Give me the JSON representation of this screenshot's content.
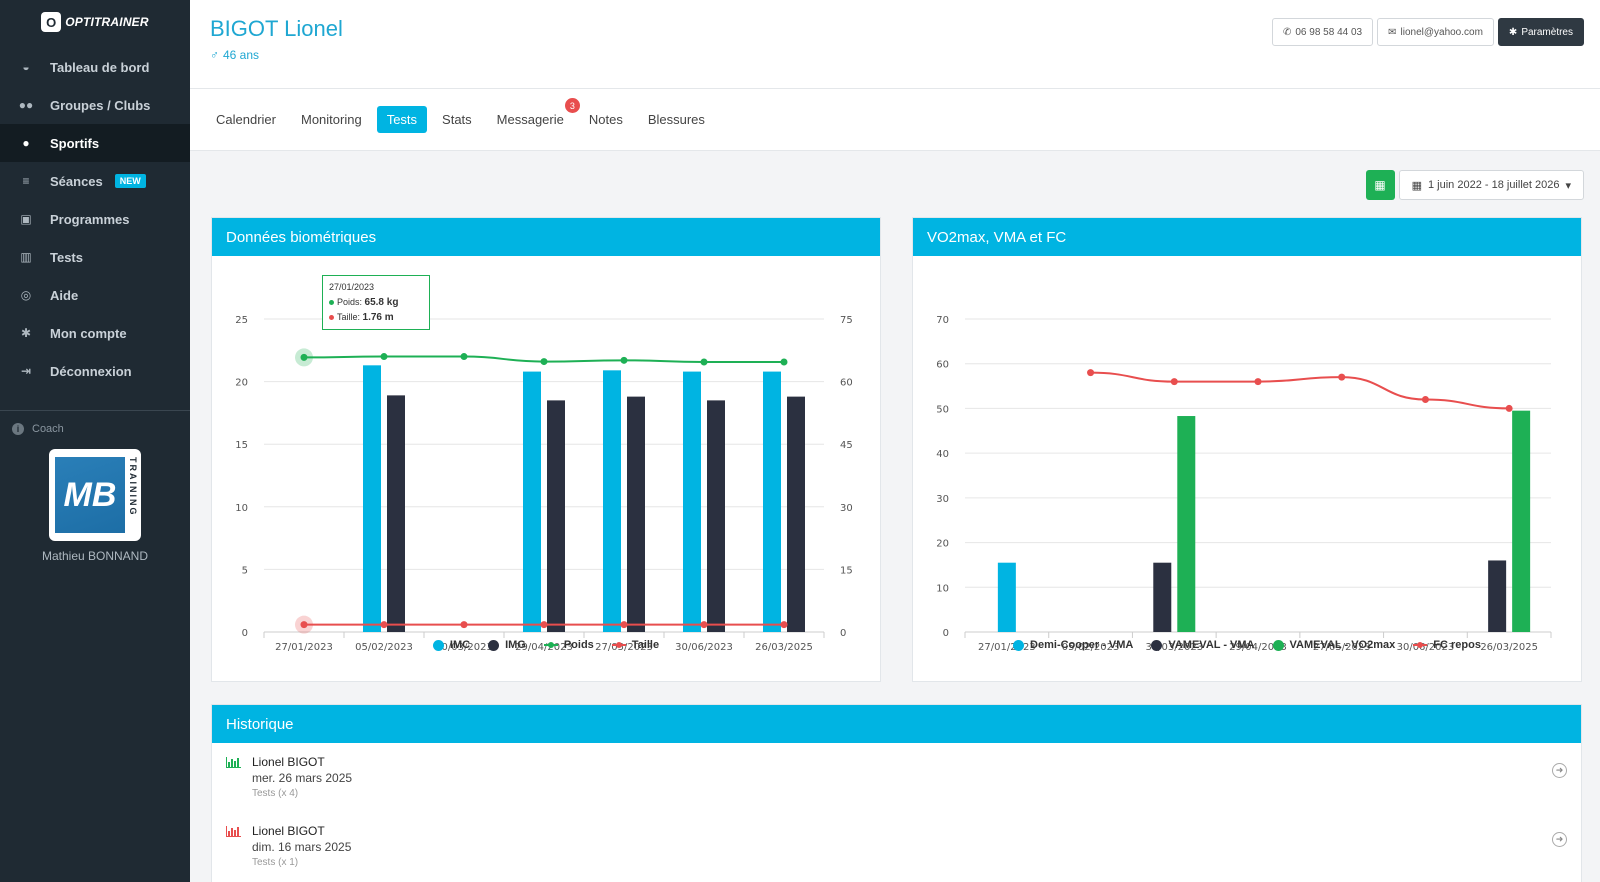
{
  "brand": {
    "name": "OPTITRAINER",
    "mark": "O"
  },
  "sidebar": {
    "items": [
      {
        "label": "Tableau de bord",
        "icon": "◒"
      },
      {
        "label": "Groupes / Clubs",
        "icon": "👥"
      },
      {
        "label": "Sportifs",
        "icon": "●"
      },
      {
        "label": "Séances",
        "icon": "≡",
        "badge": "NEW"
      },
      {
        "label": "Programmes",
        "icon": "▣"
      },
      {
        "label": "Tests",
        "icon": "▥"
      },
      {
        "label": "Aide",
        "icon": "◎"
      },
      {
        "label": "Mon compte",
        "icon": "✱"
      },
      {
        "label": "Déconnexion",
        "icon": "⇥"
      }
    ],
    "coach_label": "Coach",
    "coach_name": "Mathieu BONNAND",
    "coach_logo_text": "MB",
    "coach_logo_side": "TRAINING"
  },
  "header": {
    "name": "BIGOT Lionel",
    "gender_icon": "♂",
    "age": "46 ans",
    "phone": "06 98 58 44 03",
    "email": "lionel@yahoo.com",
    "settings": "Paramètres"
  },
  "tabs": [
    {
      "label": "Calendrier"
    },
    {
      "label": "Monitoring"
    },
    {
      "label": "Tests",
      "active": true
    },
    {
      "label": "Stats"
    },
    {
      "label": "Messagerie",
      "badge": "3"
    },
    {
      "label": "Notes"
    },
    {
      "label": "Blessures"
    }
  ],
  "filters": {
    "date_range": "1 juin 2022 - 18 juillet 2026"
  },
  "panels": {
    "bio_title": "Données biométriques",
    "vo2_title": "VO2max, VMA et FC",
    "hist_title": "Historique"
  },
  "tooltip": {
    "date": "27/01/2023",
    "poids_label": "Poids:",
    "poids_value": "65.8 kg",
    "taille_label": "Taille:",
    "taille_value": "1.76 m"
  },
  "history": [
    {
      "name": "Lionel BIGOT",
      "date": "mer. 26 mars 2025",
      "sub": "Tests (x 4)",
      "color": "#1eb055"
    },
    {
      "name": "Lionel BIGOT",
      "date": "dim. 16 mars 2025",
      "sub": "Tests (x 1)",
      "color": "#e84e4e"
    }
  ],
  "chart_data": [
    {
      "type": "bar",
      "categories": [
        "27/01/2023",
        "05/02/2023",
        "30/03/2023",
        "29/04/2023",
        "27/05/2023",
        "30/06/2023",
        "26/03/2025"
      ],
      "series": [
        {
          "name": "IMC",
          "kind": "bar",
          "axis": "left",
          "color": "#00b4e2",
          "values": [
            null,
            21.3,
            null,
            20.8,
            20.9,
            20.8,
            20.8
          ]
        },
        {
          "name": "IMG",
          "kind": "bar",
          "axis": "left",
          "color": "#2b3040",
          "values": [
            null,
            18.9,
            null,
            18.5,
            18.8,
            18.5,
            18.8
          ]
        },
        {
          "name": "Poids",
          "kind": "line",
          "axis": "right",
          "color": "#1eb055",
          "values": [
            65.8,
            66.0,
            66.0,
            64.8,
            65.1,
            64.7,
            64.7
          ]
        },
        {
          "name": "Taille",
          "kind": "line",
          "axis": "right",
          "color": "#e84e4e",
          "values": [
            1.76,
            1.76,
            1.76,
            1.76,
            1.76,
            1.76,
            1.76
          ]
        }
      ],
      "ylim": [
        0,
        25
      ],
      "yticks": [
        0,
        5,
        10,
        15,
        20,
        25
      ],
      "y2lim": [
        0,
        75
      ],
      "y2ticks": [
        0,
        15,
        30,
        45,
        60,
        75
      ],
      "grid": true,
      "legend_position": "bottom"
    },
    {
      "type": "bar",
      "categories": [
        "27/01/2023",
        "05/02/2023",
        "30/03/2023",
        "29/04/2023",
        "27/05/2023",
        "30/06/2023",
        "26/03/2025"
      ],
      "series": [
        {
          "name": "Demi-Cooper - VMA",
          "kind": "bar",
          "color": "#00b4e2",
          "values": [
            15.5,
            null,
            null,
            null,
            null,
            null,
            null
          ]
        },
        {
          "name": "VAMEVAL - VMA",
          "kind": "bar",
          "color": "#2b3040",
          "values": [
            null,
            null,
            15.5,
            null,
            null,
            null,
            16
          ]
        },
        {
          "name": "VAMEVAL - VO2max",
          "kind": "bar",
          "color": "#1eb055",
          "values": [
            null,
            null,
            48.3,
            null,
            null,
            null,
            49.5
          ]
        },
        {
          "name": "FC repos",
          "kind": "line",
          "color": "#e84e4e",
          "values": [
            null,
            58,
            56,
            56,
            57,
            52,
            50
          ]
        }
      ],
      "ylim": [
        0,
        70
      ],
      "yticks": [
        0,
        10,
        20,
        30,
        40,
        50,
        60,
        70
      ],
      "grid": true,
      "legend_position": "bottom"
    }
  ]
}
